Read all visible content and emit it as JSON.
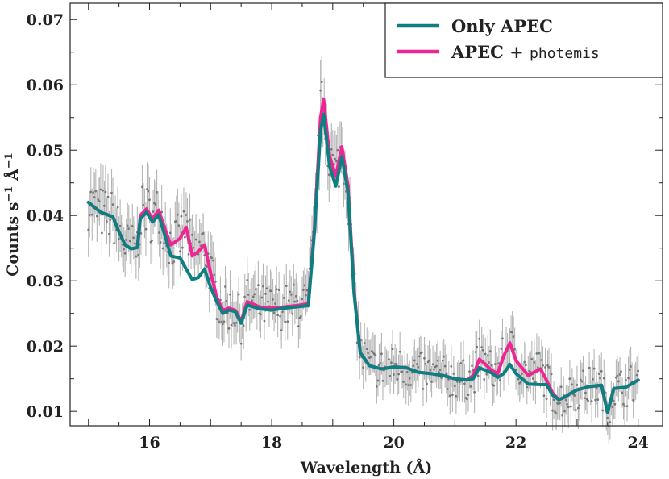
{
  "chart_data": {
    "type": "line",
    "xlabel": "Wavelength (Å)",
    "ylabel_main": "Counts s",
    "ylabel_exp1": "−1",
    "ylabel_mid": " Å",
    "ylabel_exp2": "−1",
    "xlim": [
      14.7,
      24.4
    ],
    "ylim": [
      0.0078,
      0.0725
    ],
    "xticks": [
      16,
      18,
      20,
      22,
      24
    ],
    "xtick_labels": [
      "16",
      "18",
      "20",
      "22",
      "24"
    ],
    "yticks": [
      0.01,
      0.02,
      0.03,
      0.04,
      0.05,
      0.06,
      0.07
    ],
    "ytick_labels": [
      "0.01",
      "0.02",
      "0.03",
      "0.04",
      "0.05",
      "0.06",
      "0.07"
    ],
    "legend": {
      "position": "top-right",
      "entries": [
        {
          "label": "Only APEC",
          "color": "#0e7f80"
        },
        {
          "label_main": "APEC + ",
          "label_mono": "photemis",
          "color": "#ee2592"
        }
      ]
    },
    "series": [
      {
        "name": "Only APEC",
        "color": "#0e7f80",
        "x": [
          15.0,
          15.2,
          15.4,
          15.5,
          15.6,
          15.7,
          15.8,
          15.85,
          15.95,
          16.05,
          16.15,
          16.25,
          16.35,
          16.5,
          16.6,
          16.7,
          16.8,
          16.9,
          17.0,
          17.1,
          17.2,
          17.3,
          17.4,
          17.5,
          17.6,
          17.8,
          18.0,
          18.2,
          18.4,
          18.6,
          18.7,
          18.8,
          18.85,
          18.95,
          19.05,
          19.15,
          19.25,
          19.35,
          19.45,
          19.6,
          19.8,
          20.0,
          20.2,
          20.4,
          20.6,
          20.8,
          21.0,
          21.2,
          21.3,
          21.4,
          21.5,
          21.6,
          21.7,
          21.8,
          21.9,
          22.0,
          22.2,
          22.4,
          22.5,
          22.6,
          22.7,
          22.8,
          22.9,
          23.0,
          23.2,
          23.4,
          23.5,
          23.6,
          23.8,
          24.0
        ],
        "y": [
          0.042,
          0.0405,
          0.0398,
          0.0375,
          0.0355,
          0.0349,
          0.0351,
          0.0395,
          0.0405,
          0.039,
          0.0401,
          0.037,
          0.0338,
          0.0335,
          0.0318,
          0.0302,
          0.0305,
          0.0318,
          0.029,
          0.0268,
          0.025,
          0.0255,
          0.0253,
          0.0235,
          0.0263,
          0.0257,
          0.0255,
          0.0258,
          0.026,
          0.0262,
          0.0375,
          0.053,
          0.0555,
          0.0475,
          0.0445,
          0.049,
          0.0435,
          0.028,
          0.019,
          0.017,
          0.0165,
          0.0168,
          0.0167,
          0.016,
          0.0158,
          0.0155,
          0.015,
          0.0148,
          0.015,
          0.0167,
          0.0163,
          0.0159,
          0.0152,
          0.0158,
          0.0172,
          0.0158,
          0.0142,
          0.0141,
          0.0141,
          0.0125,
          0.0118,
          0.0122,
          0.0128,
          0.0133,
          0.0138,
          0.014,
          0.0098,
          0.0135,
          0.0137,
          0.0148
        ]
      },
      {
        "name": "APEC + photemis",
        "color": "#ee2592",
        "x": [
          15.0,
          15.2,
          15.4,
          15.5,
          15.6,
          15.7,
          15.8,
          15.85,
          15.95,
          16.05,
          16.15,
          16.25,
          16.35,
          16.5,
          16.6,
          16.7,
          16.8,
          16.9,
          17.0,
          17.1,
          17.2,
          17.3,
          17.4,
          17.5,
          17.6,
          17.8,
          18.0,
          18.2,
          18.4,
          18.6,
          18.7,
          18.8,
          18.85,
          18.95,
          19.05,
          19.15,
          19.25,
          19.35,
          19.45,
          19.6,
          19.8,
          20.0,
          20.2,
          20.4,
          20.6,
          20.8,
          21.0,
          21.2,
          21.3,
          21.4,
          21.5,
          21.6,
          21.7,
          21.8,
          21.9,
          22.0,
          22.2,
          22.4,
          22.5,
          22.6,
          22.7,
          22.8,
          22.9,
          23.0,
          23.2,
          23.4,
          23.5,
          23.6,
          23.8,
          24.0
        ],
        "y": [
          0.042,
          0.0405,
          0.0398,
          0.0375,
          0.0355,
          0.0349,
          0.0351,
          0.04,
          0.041,
          0.0395,
          0.0408,
          0.038,
          0.0355,
          0.0365,
          0.0382,
          0.0338,
          0.0345,
          0.0355,
          0.0312,
          0.0275,
          0.0255,
          0.0258,
          0.0255,
          0.0238,
          0.0268,
          0.026,
          0.0258,
          0.026,
          0.0262,
          0.0265,
          0.038,
          0.055,
          0.0578,
          0.049,
          0.046,
          0.0505,
          0.0445,
          0.0285,
          0.019,
          0.017,
          0.0165,
          0.0168,
          0.0167,
          0.016,
          0.0158,
          0.0155,
          0.015,
          0.0148,
          0.0155,
          0.018,
          0.0172,
          0.0163,
          0.0158,
          0.0185,
          0.0205,
          0.0178,
          0.0155,
          0.0165,
          0.0148,
          0.0128,
          0.0118,
          0.0122,
          0.0128,
          0.0133,
          0.0138,
          0.014,
          0.0098,
          0.0135,
          0.0137,
          0.0148
        ]
      }
    ]
  }
}
